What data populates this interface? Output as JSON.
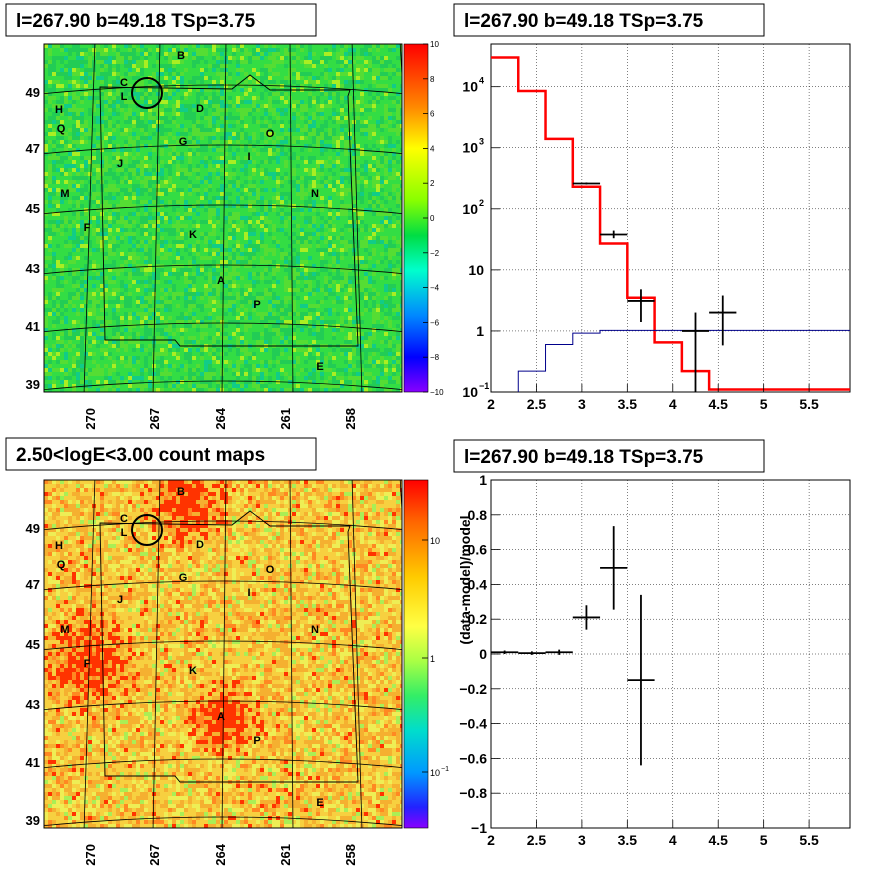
{
  "panels": {
    "top_left_title": "l=267.90 b=49.18 TSp=3.75",
    "top_right_title": "l=267.90 b=49.18 TSp=3.75",
    "bottom_left_title": "2.50<logE<3.00 count maps",
    "bottom_right_title": "l=267.90 b=49.18 TSp=3.75"
  },
  "colors": {
    "model_line": "#ff0000",
    "background_line": "#00008b",
    "data_points": "#000000",
    "residual_map_base": "#33dd33",
    "count_map_base": "#f5c43a"
  },
  "chart_data": [
    {
      "type": "heatmap",
      "name": "residual-map",
      "x_ticks": [
        "270",
        "267",
        "264",
        "261",
        "258"
      ],
      "y_ticks": [
        "39",
        "41",
        "43",
        "45",
        "47",
        "49"
      ],
      "colorbar_ticks": [
        "10",
        "8",
        "6",
        "4",
        "2",
        "0",
        "−2",
        "−4",
        "−6",
        "−8",
        "−10"
      ],
      "zlim": [
        -10,
        10
      ],
      "source_labels": [
        "A",
        "B",
        "C",
        "D",
        "E",
        "F",
        "G",
        "H",
        "I",
        "J",
        "K",
        "L",
        "M",
        "N",
        "O",
        "P",
        "Q"
      ],
      "grid": true
    },
    {
      "type": "line",
      "name": "spectrum",
      "x_ticks": [
        "2",
        "2.5",
        "3",
        "3.5",
        "4",
        "4.5",
        "5",
        "5.5"
      ],
      "y_ticks": [
        "10",
        "1",
        "10"
      ],
      "y_tick_exponents": [
        "4",
        "3",
        "2",
        "",
        "",
        "−1"
      ],
      "y_tick_labels": [
        {
          "base": "10",
          "exp": "4"
        },
        {
          "base": "10",
          "exp": "3"
        },
        {
          "base": "10",
          "exp": "2"
        },
        {
          "base": "10",
          "exp": ""
        },
        {
          "base": "1",
          "exp": ""
        },
        {
          "base": "10",
          "exp": "−1"
        }
      ],
      "xlim": [
        2,
        5.95
      ],
      "ylim": [
        0.1,
        50000
      ],
      "log_y": true,
      "grid": true,
      "bin_edges": [
        2.0,
        2.3,
        2.6,
        2.9,
        3.2,
        3.5,
        3.8,
        4.1,
        4.4,
        4.7,
        5.0,
        5.3,
        5.6,
        5.95
      ],
      "series": [
        {
          "values": [
            30000,
            8500,
            1400,
            230,
            27,
            3.5,
            0.65,
            0.22,
            0.11,
            0.11,
            0.11,
            0.11,
            0.11
          ]
        },
        {
          "values": [
            0.09,
            0.22,
            0.6,
            0.92,
            1.02,
            1.02,
            1.02,
            1.02,
            1.02,
            1.02,
            1.02,
            1.02,
            1.02
          ]
        }
      ],
      "points": [
        {
          "x": 3.05,
          "xerr": 0.15,
          "y": 260,
          "ylo": 250,
          "yhi": 270
        },
        {
          "x": 3.35,
          "xerr": 0.15,
          "y": 38,
          "ylo": 33,
          "yhi": 44
        },
        {
          "x": 3.65,
          "xerr": 0.15,
          "y": 3.1,
          "ylo": 1.4,
          "yhi": 4.8
        },
        {
          "x": 4.25,
          "xerr": 0.15,
          "y": 1.0,
          "ylo": 0.1,
          "yhi": 2.0
        },
        {
          "x": 4.55,
          "xerr": 0.15,
          "y": 2.0,
          "ylo": 0.58,
          "yhi": 3.8
        }
      ]
    },
    {
      "type": "heatmap",
      "name": "count-map",
      "x_ticks": [
        "270",
        "267",
        "264",
        "261",
        "258"
      ],
      "y_ticks": [
        "39",
        "41",
        "43",
        "45",
        "47",
        "49"
      ],
      "colorbar_ticks": [
        "10",
        "1",
        "10"
      ],
      "colorbar_exponents": [
        "",
        "",
        "−1"
      ],
      "source_labels": [
        "A",
        "B",
        "C",
        "D",
        "E",
        "F",
        "G",
        "H",
        "I",
        "J",
        "K",
        "L",
        "M",
        "N",
        "O",
        "P",
        "Q"
      ],
      "grid": true
    },
    {
      "type": "scatter",
      "name": "residual-ratio",
      "ylabel": "(data-model)/model",
      "x_ticks": [
        "2",
        "2.5",
        "3",
        "3.5",
        "4",
        "4.5",
        "5",
        "5.5"
      ],
      "y_ticks": [
        "1",
        "0.8",
        "0.6",
        "0.4",
        "0.2",
        "0",
        "−0.2",
        "−0.4",
        "−0.6",
        "−0.8",
        "−1"
      ],
      "xlim": [
        2,
        5.95
      ],
      "ylim": [
        -1,
        1
      ],
      "grid": true,
      "points": [
        {
          "x": 2.15,
          "xerr": 0.15,
          "y": 0.01,
          "err": 0.01
        },
        {
          "x": 2.45,
          "xerr": 0.15,
          "y": 0.005,
          "err": 0.01
        },
        {
          "x": 2.75,
          "xerr": 0.15,
          "y": 0.01,
          "err": 0.015
        },
        {
          "x": 3.05,
          "xerr": 0.15,
          "y": 0.21,
          "err": 0.07
        },
        {
          "x": 3.35,
          "xerr": 0.15,
          "y": 0.495,
          "err": 0.24
        },
        {
          "x": 3.65,
          "xerr": 0.15,
          "y": -0.15,
          "err": 0.49
        }
      ]
    }
  ]
}
